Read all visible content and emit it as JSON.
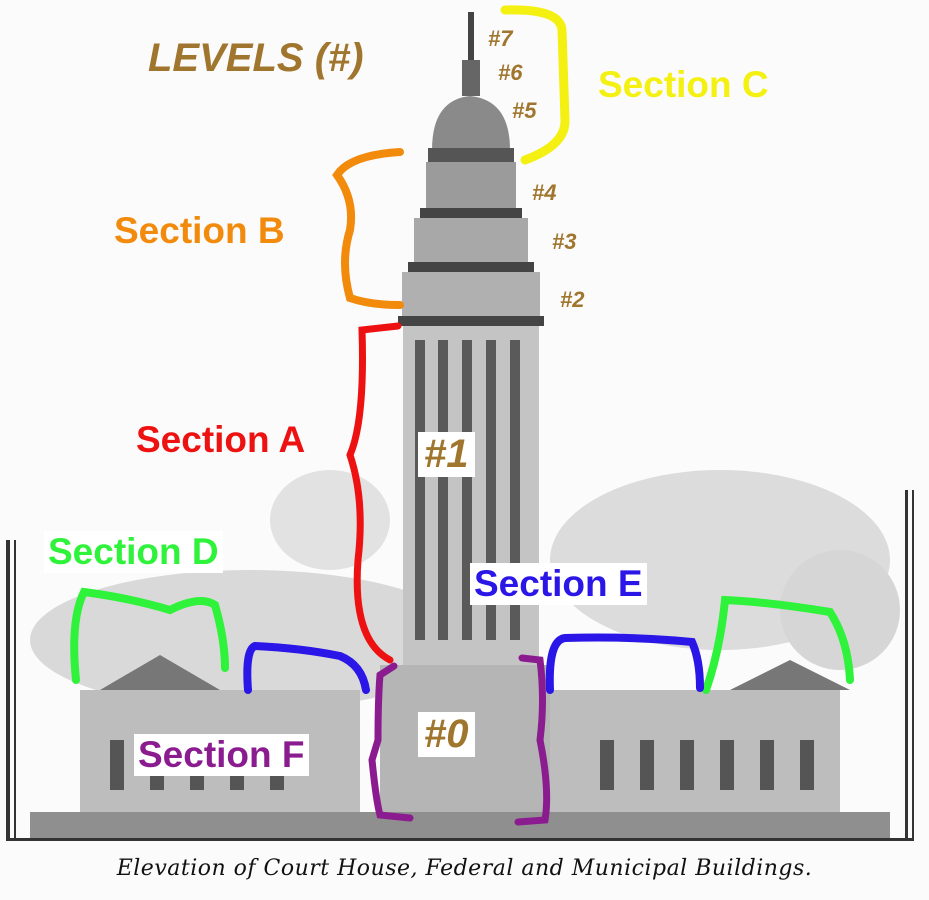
{
  "title": "LEVELS (#)",
  "levels": {
    "l7": "#7",
    "l6": "#6",
    "l5": "#5",
    "l4": "#4",
    "l3": "#3",
    "l2": "#2",
    "l1": "#1",
    "l0": "#0"
  },
  "sections": {
    "a": "Section A",
    "b": "Section B",
    "c": "Section C",
    "d": "Section D",
    "e": "Section E",
    "f": "Section F"
  },
  "caption": "Elevation of Court House, Federal and Municipal Buildings.",
  "colors": {
    "level_label": "#a0762e",
    "section_a": "#ee1111",
    "section_b": "#f28a0c",
    "section_c": "#f4f011",
    "section_d": "#2ff23a",
    "section_e": "#2a16e6",
    "section_f": "#8a1c8f"
  }
}
